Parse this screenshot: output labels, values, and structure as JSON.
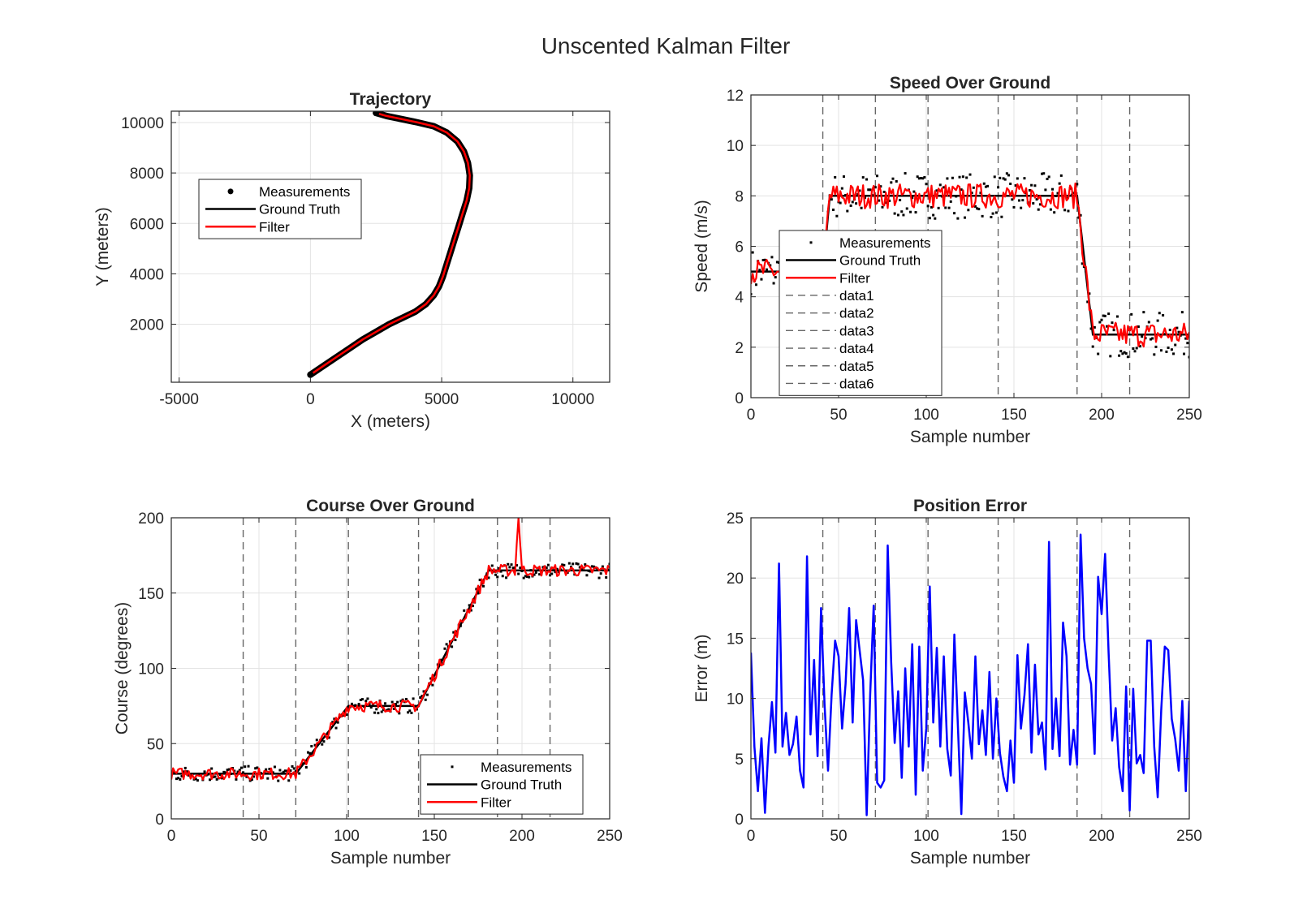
{
  "figure_title": "Unscented Kalman Filter",
  "chart_data": [
    {
      "id": "trajectory",
      "type": "line",
      "title": "Trajectory",
      "xlabel": "X (meters)",
      "ylabel": "Y (meters)",
      "xlim": [
        -5300,
        11400
      ],
      "ylim": [
        -300,
        10450
      ],
      "xticks": [
        -5000,
        0,
        5000,
        10000
      ],
      "xtick_labels": [
        "-5000",
        "0",
        "5000",
        "10000"
      ],
      "yticks": [
        2000,
        4000,
        6000,
        8000,
        10000
      ],
      "ytick_labels": [
        "2000",
        "4000",
        "6000",
        "8000",
        "10000"
      ],
      "grid": true,
      "legend": {
        "position": "upper-left",
        "entries": [
          "Measurements",
          "Ground Truth",
          "Filter"
        ]
      },
      "series": [
        {
          "name": "Ground Truth",
          "color": "#000000",
          "x": [
            0,
            500,
            1000,
            1500,
            2000,
            2500,
            3000,
            3500,
            4000,
            4400,
            4700,
            4900,
            5050,
            5200,
            5350,
            5500,
            5650,
            5800,
            5950,
            6050,
            6070,
            6000,
            5850,
            5600,
            5200,
            4700,
            4100,
            3500,
            2900,
            2500
          ],
          "y": [
            0,
            350,
            700,
            1050,
            1400,
            1700,
            2000,
            2250,
            2500,
            2800,
            3150,
            3500,
            3900,
            4400,
            4900,
            5400,
            5900,
            6400,
            6900,
            7400,
            7900,
            8400,
            8850,
            9250,
            9600,
            9850,
            10000,
            10130,
            10260,
            10380
          ]
        },
        {
          "name": "Filter",
          "color": "#ff0000",
          "follows": "Ground Truth"
        },
        {
          "name": "Measurements",
          "color": "#000000",
          "marker": "dot",
          "follows": "Ground Truth"
        }
      ]
    },
    {
      "id": "speed",
      "type": "line",
      "title": "Speed Over Ground",
      "xlabel": "Sample number",
      "ylabel": "Speed (m/s)",
      "xlim": [
        0,
        250
      ],
      "ylim": [
        0,
        12
      ],
      "xticks": [
        0,
        50,
        100,
        150,
        200,
        250
      ],
      "xtick_labels": [
        "0",
        "50",
        "100",
        "150",
        "200",
        "250"
      ],
      "yticks": [
        0,
        2,
        4,
        6,
        8,
        10,
        12
      ],
      "ytick_labels": [
        "0",
        "2",
        "4",
        "6",
        "8",
        "10",
        "12"
      ],
      "grid": true,
      "legend": {
        "position": "lower-left",
        "entries": [
          "Measurements",
          "Ground Truth",
          "Filter",
          "data1",
          "data2",
          "data3",
          "data4",
          "data5",
          "data6"
        ]
      },
      "vlines": [
        41,
        71,
        101,
        141,
        186,
        216
      ],
      "series": [
        {
          "name": "Ground Truth",
          "color": "#000000",
          "x": [
            0,
            41,
            45,
            186,
            195,
            250
          ],
          "y": [
            5,
            5,
            8,
            8,
            2.5,
            2.5
          ]
        },
        {
          "name": "Filter",
          "color": "#ff0000",
          "noise": 0.5
        },
        {
          "name": "Measurements",
          "color": "#000000",
          "marker": "dot",
          "noise": 0.9
        }
      ]
    },
    {
      "id": "course",
      "type": "line",
      "title": "Course Over Ground",
      "xlabel": "Sample number",
      "ylabel": "Course (degrees)",
      "xlim": [
        0,
        250
      ],
      "ylim": [
        0,
        200
      ],
      "xticks": [
        0,
        50,
        100,
        150,
        200,
        250
      ],
      "xtick_labels": [
        "0",
        "50",
        "100",
        "150",
        "200",
        "250"
      ],
      "yticks": [
        0,
        50,
        100,
        150,
        200
      ],
      "ytick_labels": [
        "0",
        "50",
        "100",
        "150",
        "200"
      ],
      "grid": true,
      "legend": {
        "position": "lower-right",
        "entries": [
          "Measurements",
          "Ground Truth",
          "Filter"
        ]
      },
      "vlines": [
        41,
        71,
        101,
        141,
        186,
        216
      ],
      "series": [
        {
          "name": "Ground Truth",
          "color": "#000000",
          "x": [
            0,
            71,
            101,
            141,
            181,
            250
          ],
          "y": [
            30,
            30,
            75,
            75,
            165,
            165
          ]
        },
        {
          "name": "Filter",
          "color": "#ff0000",
          "noise": 4,
          "spike": {
            "x": 198,
            "y": 200
          }
        },
        {
          "name": "Measurements",
          "color": "#000000",
          "marker": "dot",
          "noise": 5
        }
      ]
    },
    {
      "id": "error",
      "type": "line",
      "title": "Position Error",
      "xlabel": "Sample number",
      "ylabel": "Error (m)",
      "xlim": [
        0,
        250
      ],
      "ylim": [
        0,
        25
      ],
      "xticks": [
        0,
        50,
        100,
        150,
        200,
        250
      ],
      "xtick_labels": [
        "0",
        "50",
        "100",
        "150",
        "200",
        "250"
      ],
      "yticks": [
        0,
        5,
        10,
        15,
        20,
        25
      ],
      "ytick_labels": [
        "0",
        "5",
        "10",
        "15",
        "20",
        "25"
      ],
      "grid": true,
      "vlines": [
        41,
        71,
        101,
        141,
        186,
        216
      ],
      "series": [
        {
          "name": "Error",
          "color": "#0000ff",
          "x": [
            0,
            2,
            4,
            6,
            8,
            10,
            12,
            14,
            16,
            18,
            20,
            22,
            24,
            26,
            28,
            30,
            32,
            34,
            36,
            38,
            40,
            42,
            44,
            46,
            48,
            50,
            52,
            54,
            56,
            58,
            60,
            62,
            64,
            66,
            68,
            70,
            72,
            74,
            76,
            78,
            80,
            82,
            84,
            86,
            88,
            90,
            92,
            94,
            96,
            98,
            100,
            102,
            104,
            106,
            108,
            110,
            112,
            114,
            116,
            118,
            120,
            122,
            124,
            126,
            128,
            130,
            132,
            134,
            136,
            138,
            140,
            142,
            144,
            146,
            148,
            150,
            152,
            154,
            156,
            158,
            160,
            162,
            164,
            166,
            168,
            170,
            172,
            174,
            176,
            178,
            180,
            182,
            184,
            186,
            188,
            190,
            192,
            194,
            196,
            198,
            200,
            202,
            204,
            206,
            208,
            210,
            212,
            214,
            216,
            218,
            220,
            222,
            224,
            226,
            228,
            230,
            232,
            234,
            236,
            238,
            240,
            242,
            244,
            246,
            248,
            250
          ],
          "y": [
            13.8,
            6,
            2.3,
            6.7,
            0.5,
            6,
            9.7,
            5.5,
            21.2,
            6,
            8.8,
            5.3,
            6.2,
            8.5,
            4,
            2.6,
            21.8,
            7,
            13.2,
            5.2,
            17.5,
            9.5,
            4,
            10.3,
            14.8,
            13.5,
            7.5,
            11.2,
            17.5,
            8,
            16.5,
            14,
            11.5,
            0.3,
            10.3,
            17.7,
            3,
            2.6,
            3.2,
            22.7,
            13,
            6.3,
            10.6,
            3.4,
            12.5,
            6,
            14.5,
            2,
            14.3,
            4,
            7.5,
            19.3,
            8,
            14.2,
            6,
            13.5,
            5.8,
            3.6,
            15.3,
            7.8,
            0.4,
            10.5,
            8,
            5,
            13.5,
            6.2,
            9,
            5.3,
            12.2,
            5,
            10,
            5.5,
            3.5,
            2.3,
            6.5,
            3,
            13.6,
            7.5,
            10.3,
            14.5,
            5.5,
            12.8,
            7,
            8,
            4.1,
            23,
            5.8,
            10,
            5.2,
            16.3,
            13.5,
            4.5,
            7.4,
            4.5,
            23.6,
            15,
            12.5,
            11.2,
            5.4,
            20.1,
            17,
            22,
            13.8,
            6.5,
            9.2,
            4.3,
            2.3,
            11,
            0.7,
            10.8,
            4.6,
            5.3,
            3.8,
            14.8,
            14.8,
            6,
            1.8,
            9,
            14.3,
            14,
            8.3,
            6.6,
            4,
            9.8,
            2.3,
            9.8
          ]
        }
      ]
    }
  ]
}
